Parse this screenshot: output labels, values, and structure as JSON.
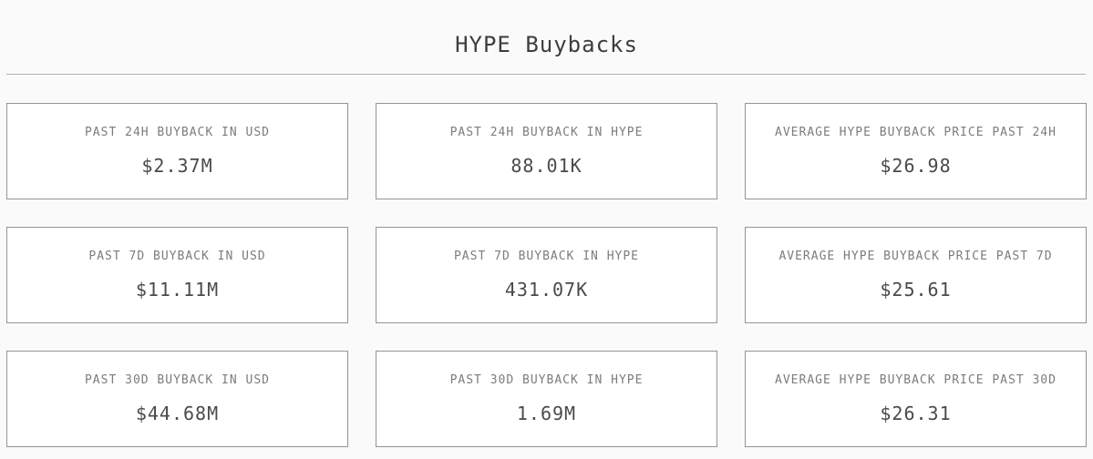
{
  "page": {
    "title": "HYPE Buybacks"
  },
  "colors": {
    "page_background": "#fafafa",
    "card_background": "#ffffff",
    "card_border": "#949494",
    "divider": "#b3b3b3",
    "title_text": "#3d3d3d",
    "label_text": "#7c7c7c",
    "value_text": "#4a4a4a"
  },
  "cards": [
    {
      "label": "PAST 24H BUYBACK IN USD",
      "value": "$2.37M"
    },
    {
      "label": "PAST 24H BUYBACK IN HYPE",
      "value": "88.01K"
    },
    {
      "label": "AVERAGE HYPE BUYBACK PRICE PAST 24H",
      "value": "$26.98"
    },
    {
      "label": "PAST 7D BUYBACK IN USD",
      "value": "$11.11M"
    },
    {
      "label": "PAST 7D BUYBACK IN HYPE",
      "value": "431.07K"
    },
    {
      "label": "AVERAGE HYPE BUYBACK PRICE PAST 7D",
      "value": "$25.61"
    },
    {
      "label": "PAST 30D BUYBACK IN USD",
      "value": "$44.68M"
    },
    {
      "label": "PAST 30D BUYBACK IN HYPE",
      "value": "1.69M"
    },
    {
      "label": "AVERAGE HYPE BUYBACK PRICE PAST 30D",
      "value": "$26.31"
    }
  ]
}
